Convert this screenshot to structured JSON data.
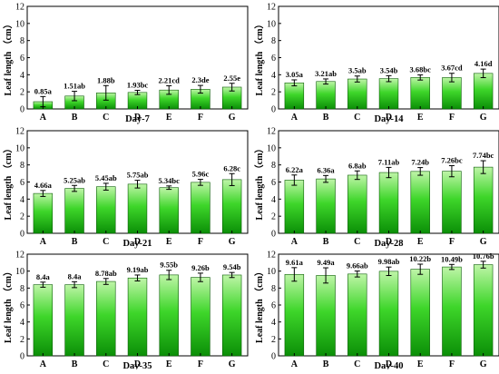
{
  "figure_layout": "3 rows x 2 columns",
  "colors": {
    "bar_top": "#bff5a8",
    "bar_mid": "#3ed62a",
    "bar_bottom": "#0b8f07",
    "bar_outline": "#0a5e05",
    "axis": "#000000"
  },
  "chart_data": [
    {
      "type": "bar",
      "xlabel": "Day-7",
      "ylabel": "Leaf length （cm）",
      "ylim": [
        0,
        12
      ],
      "yticks": [
        0,
        2,
        4,
        6,
        8,
        10,
        12
      ],
      "grid": false,
      "categories": [
        "A",
        "B",
        "C",
        "D",
        "E",
        "F",
        "G"
      ],
      "values": [
        0.85,
        1.51,
        1.88,
        1.93,
        2.21,
        2.3,
        2.55
      ],
      "errors": [
        0.6,
        0.55,
        0.85,
        0.25,
        0.5,
        0.45,
        0.45
      ],
      "labels": [
        "0.85a",
        "1.51ab",
        "1.88b",
        "1.93bc",
        "2.21cd",
        "2.3de",
        "2.55e"
      ]
    },
    {
      "type": "bar",
      "xlabel": "Day-14",
      "ylabel": "Leaf length （cm）",
      "ylim": [
        0,
        12
      ],
      "yticks": [
        0,
        2,
        4,
        6,
        8,
        10,
        12
      ],
      "grid": false,
      "categories": [
        "A",
        "B",
        "C",
        "D",
        "E",
        "F",
        "G"
      ],
      "values": [
        3.05,
        3.21,
        3.5,
        3.54,
        3.68,
        3.67,
        4.16
      ],
      "errors": [
        0.35,
        0.3,
        0.35,
        0.35,
        0.3,
        0.5,
        0.5
      ],
      "labels": [
        "3.05a",
        "3.21ab",
        "3.5ab",
        "3.54b",
        "3.68bc",
        "3.67cd",
        "4.16d"
      ]
    },
    {
      "type": "bar",
      "xlabel": "Day-21",
      "ylabel": "Leaf length （cm）",
      "ylim": [
        0,
        12
      ],
      "yticks": [
        0,
        2,
        4,
        6,
        8,
        10,
        12
      ],
      "grid": false,
      "categories": [
        "A",
        "B",
        "C",
        "D",
        "E",
        "F",
        "G"
      ],
      "values": [
        4.66,
        5.25,
        5.45,
        5.75,
        5.34,
        5.96,
        6.28
      ],
      "errors": [
        0.35,
        0.35,
        0.4,
        0.45,
        0.2,
        0.35,
        0.7
      ],
      "labels": [
        "4.66a",
        "5.25ab",
        "5.45ab",
        "5.75ab",
        "5.34bc",
        "5.96c",
        "6.28c"
      ]
    },
    {
      "type": "bar",
      "xlabel": "Day-28",
      "ylabel": "Leaf length （cm）",
      "ylim": [
        0,
        12
      ],
      "yticks": [
        0,
        2,
        4,
        6,
        8,
        10,
        12
      ],
      "grid": false,
      "categories": [
        "A",
        "B",
        "C",
        "D",
        "E",
        "F",
        "G"
      ],
      "values": [
        6.22,
        6.36,
        6.8,
        7.11,
        7.24,
        7.26,
        7.74
      ],
      "errors": [
        0.6,
        0.4,
        0.5,
        0.6,
        0.45,
        0.65,
        0.75
      ],
      "labels": [
        "6.22a",
        "6.36a",
        "6.8ab",
        "7.11ab",
        "7.24b",
        "7.26bc",
        "7.74bc"
      ]
    },
    {
      "type": "bar",
      "xlabel": "Day-35",
      "ylabel": "Leaf length （cm）",
      "ylim": [
        0,
        12
      ],
      "yticks": [
        0,
        2,
        4,
        6,
        8,
        10,
        12
      ],
      "grid": false,
      "categories": [
        "A",
        "B",
        "C",
        "D",
        "E",
        "F",
        "G"
      ],
      "values": [
        8.4,
        8.4,
        8.78,
        9.19,
        9.55,
        9.26,
        9.54
      ],
      "errors": [
        0.3,
        0.35,
        0.35,
        0.35,
        0.55,
        0.5,
        0.3
      ],
      "labels": [
        "8.4a",
        "8.4a",
        "8.78ab",
        "9.19ab",
        "9.55b",
        "9.26b",
        "9.54b"
      ]
    },
    {
      "type": "bar",
      "xlabel": "Day-40",
      "ylabel": "Leaf length （cm）",
      "ylim": [
        0,
        12
      ],
      "yticks": [
        0,
        2,
        4,
        6,
        8,
        10,
        12
      ],
      "grid": false,
      "categories": [
        "A",
        "B",
        "C",
        "D",
        "E",
        "F",
        "G"
      ],
      "values": [
        9.61,
        9.49,
        9.66,
        9.98,
        10.22,
        10.49,
        10.76
      ],
      "errors": [
        0.8,
        0.9,
        0.35,
        0.5,
        0.6,
        0.3,
        0.4
      ],
      "labels": [
        "9.61a",
        "9.49a",
        "9.66ab",
        "9.98ab",
        "10.22b",
        "10.49b",
        "10.76b"
      ]
    }
  ]
}
